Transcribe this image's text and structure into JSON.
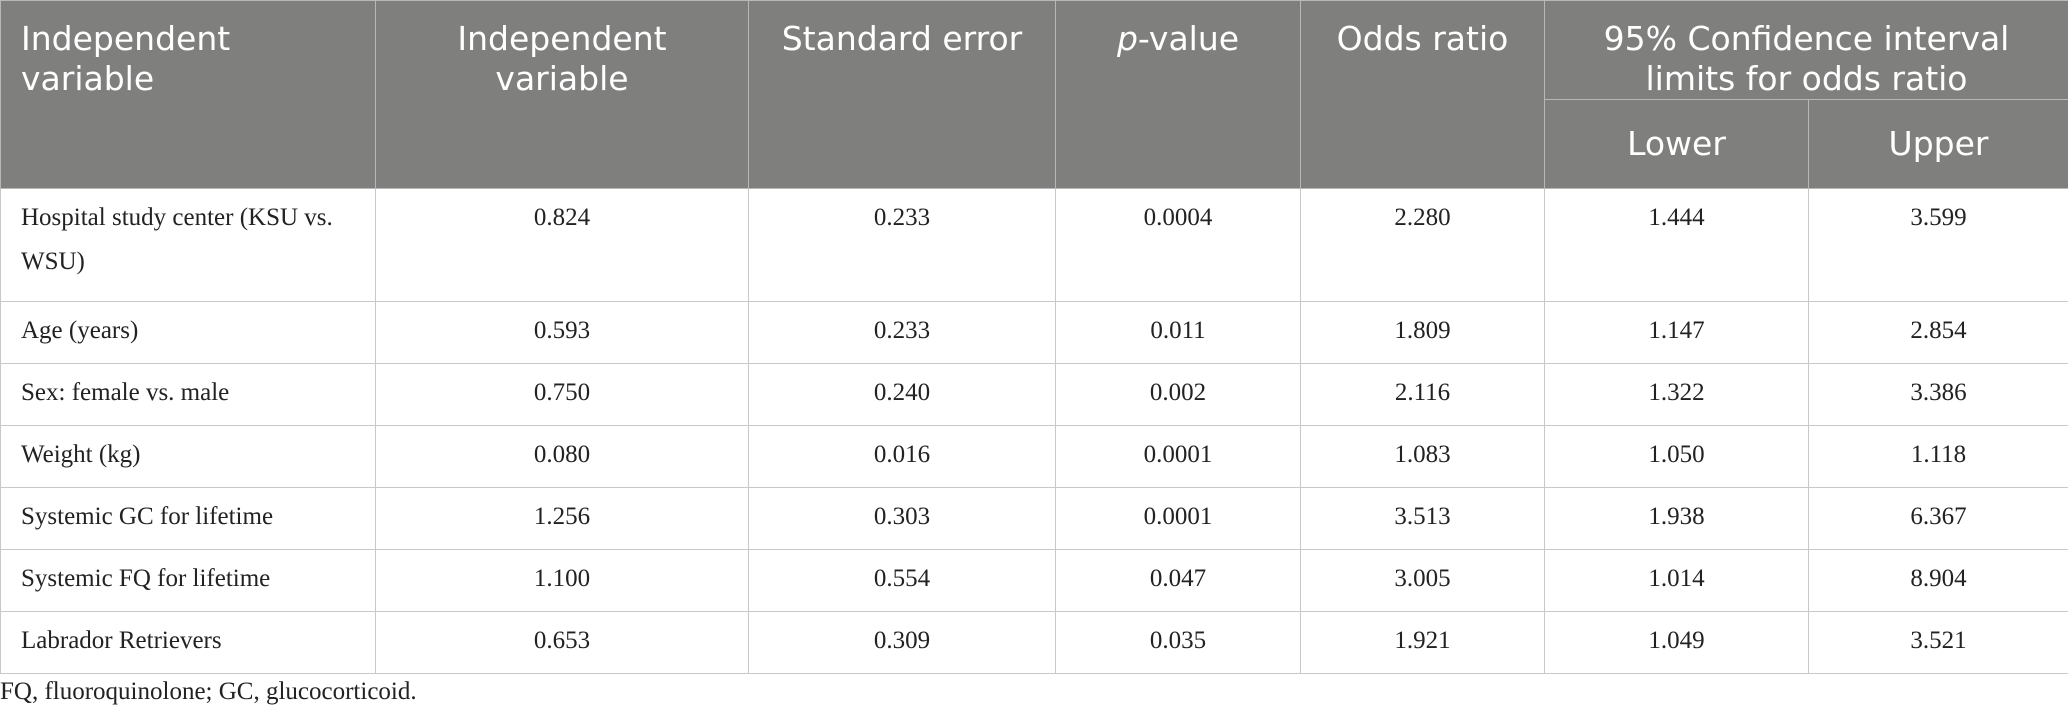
{
  "table": {
    "header": {
      "columns": [
        "Independent variable",
        "Independent variable",
        "Standard error",
        {
          "italic": "p",
          "rest": "-value"
        },
        "Odds ratio"
      ],
      "group": "95% Confidence interval limits for odds ratio",
      "subcolumns": [
        "Lower",
        "Upper"
      ]
    },
    "rows": [
      [
        "Hospital study center (KSU vs. WSU)",
        "0.824",
        "0.233",
        "0.0004",
        "2.280",
        "1.444",
        "3.599"
      ],
      [
        "Age (years)",
        "0.593",
        "0.233",
        "0.011",
        "1.809",
        "1.147",
        "2.854"
      ],
      [
        "Sex: female vs. male",
        "0.750",
        "0.240",
        "0.002",
        "2.116",
        "1.322",
        "3.386"
      ],
      [
        "Weight (kg)",
        "0.080",
        "0.016",
        "0.0001",
        "1.083",
        "1.050",
        "1.118"
      ],
      [
        "Systemic GC for lifetime",
        "1.256",
        "0.303",
        "0.0001",
        "3.513",
        "1.938",
        "6.367"
      ],
      [
        "Systemic FQ for lifetime",
        "1.100",
        "0.554",
        "0.047",
        "3.005",
        "1.014",
        "8.904"
      ],
      [
        "Labrador Retrievers",
        "0.653",
        "0.309",
        "0.035",
        "1.921",
        "1.049",
        "3.521"
      ]
    ]
  },
  "footnote": "FQ, fluoroquinolone; GC, glucocorticoid."
}
